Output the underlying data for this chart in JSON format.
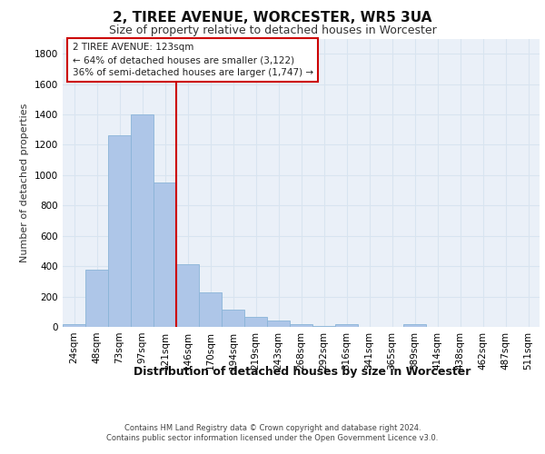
{
  "title": "2, TIREE AVENUE, WORCESTER, WR5 3UA",
  "subtitle": "Size of property relative to detached houses in Worcester",
  "xlabel": "Distribution of detached houses by size in Worcester",
  "ylabel": "Number of detached properties",
  "categories": [
    "24sqm",
    "48sqm",
    "73sqm",
    "97sqm",
    "121sqm",
    "146sqm",
    "170sqm",
    "194sqm",
    "219sqm",
    "243sqm",
    "268sqm",
    "292sqm",
    "316sqm",
    "341sqm",
    "365sqm",
    "389sqm",
    "414sqm",
    "438sqm",
    "462sqm",
    "487sqm",
    "511sqm"
  ],
  "values": [
    20,
    380,
    1260,
    1400,
    950,
    410,
    230,
    115,
    65,
    42,
    20,
    5,
    20,
    0,
    0,
    20,
    0,
    0,
    0,
    0,
    0
  ],
  "bar_color": "#aec6e8",
  "bar_edgecolor": "#8ab4d8",
  "vline_x_index": 4,
  "vline_color": "#cc0000",
  "annotation_text": "2 TIREE AVENUE: 123sqm\n← 64% of detached houses are smaller (3,122)\n36% of semi-detached houses are larger (1,747) →",
  "annotation_box_facecolor": "#ffffff",
  "annotation_box_edgecolor": "#cc0000",
  "ylim": [
    0,
    1900
  ],
  "yticks": [
    0,
    200,
    400,
    600,
    800,
    1000,
    1200,
    1400,
    1600,
    1800
  ],
  "bg_color": "#eaf0f8",
  "grid_color": "#d8e4f0",
  "title_fontsize": 11,
  "subtitle_fontsize": 9,
  "ylabel_fontsize": 8,
  "xlabel_fontsize": 9,
  "tick_fontsize": 7.5,
  "footer_line1": "Contains HM Land Registry data © Crown copyright and database right 2024.",
  "footer_line2": "Contains public sector information licensed under the Open Government Licence v3.0."
}
